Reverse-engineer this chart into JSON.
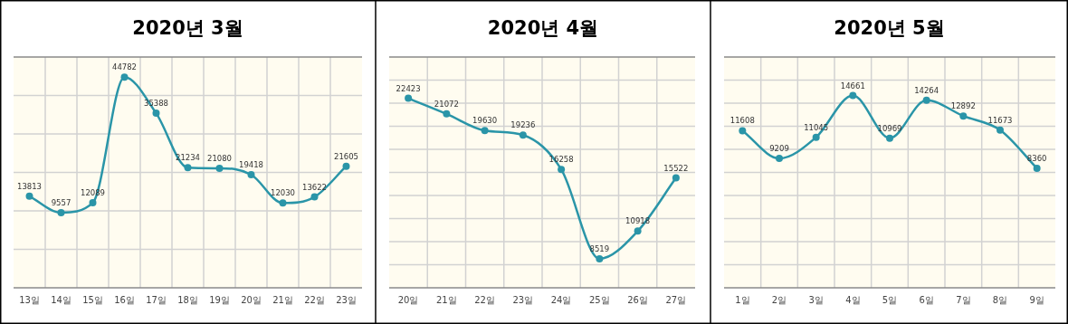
{
  "chart_data": [
    {
      "type": "line",
      "title": "2020년 3월",
      "categories": [
        "13일",
        "14일",
        "15일",
        "16일",
        "17일",
        "18일",
        "19일",
        "20일",
        "21일",
        "22일",
        "23일"
      ],
      "values": [
        13813,
        9557,
        12089,
        44782,
        35388,
        21234,
        21080,
        19418,
        12030,
        13622,
        21605
      ],
      "color": "#2a95a8",
      "ylim": [
        -10000,
        50000
      ],
      "data_labels": true,
      "grid": true,
      "marker": "circle",
      "tick_labels": "x"
    },
    {
      "type": "line",
      "title": "2020년 4월",
      "categories": [
        "20일",
        "21일",
        "22일",
        "23일",
        "24일",
        "25일",
        "26일",
        "27일"
      ],
      "values": [
        22423,
        21072,
        19630,
        19236,
        16258,
        8519,
        10918,
        15522
      ],
      "color": "#2a95a8",
      "ylim": [
        6000,
        26000
      ],
      "data_labels": true,
      "grid": true,
      "marker": "circle",
      "tick_labels": "x"
    },
    {
      "type": "line",
      "title": "2020년 5월",
      "categories": [
        "1일",
        "2일",
        "3일",
        "4일",
        "5일",
        "6일",
        "7일",
        "8일",
        "9일"
      ],
      "values": [
        11608,
        9209,
        11045,
        14661,
        10969,
        14264,
        12892,
        11673,
        8360
      ],
      "color": "#2a95a8",
      "ylim": [
        -2000,
        18000
      ],
      "data_labels": true,
      "grid": true,
      "marker": "circle",
      "tick_labels": "x"
    }
  ]
}
